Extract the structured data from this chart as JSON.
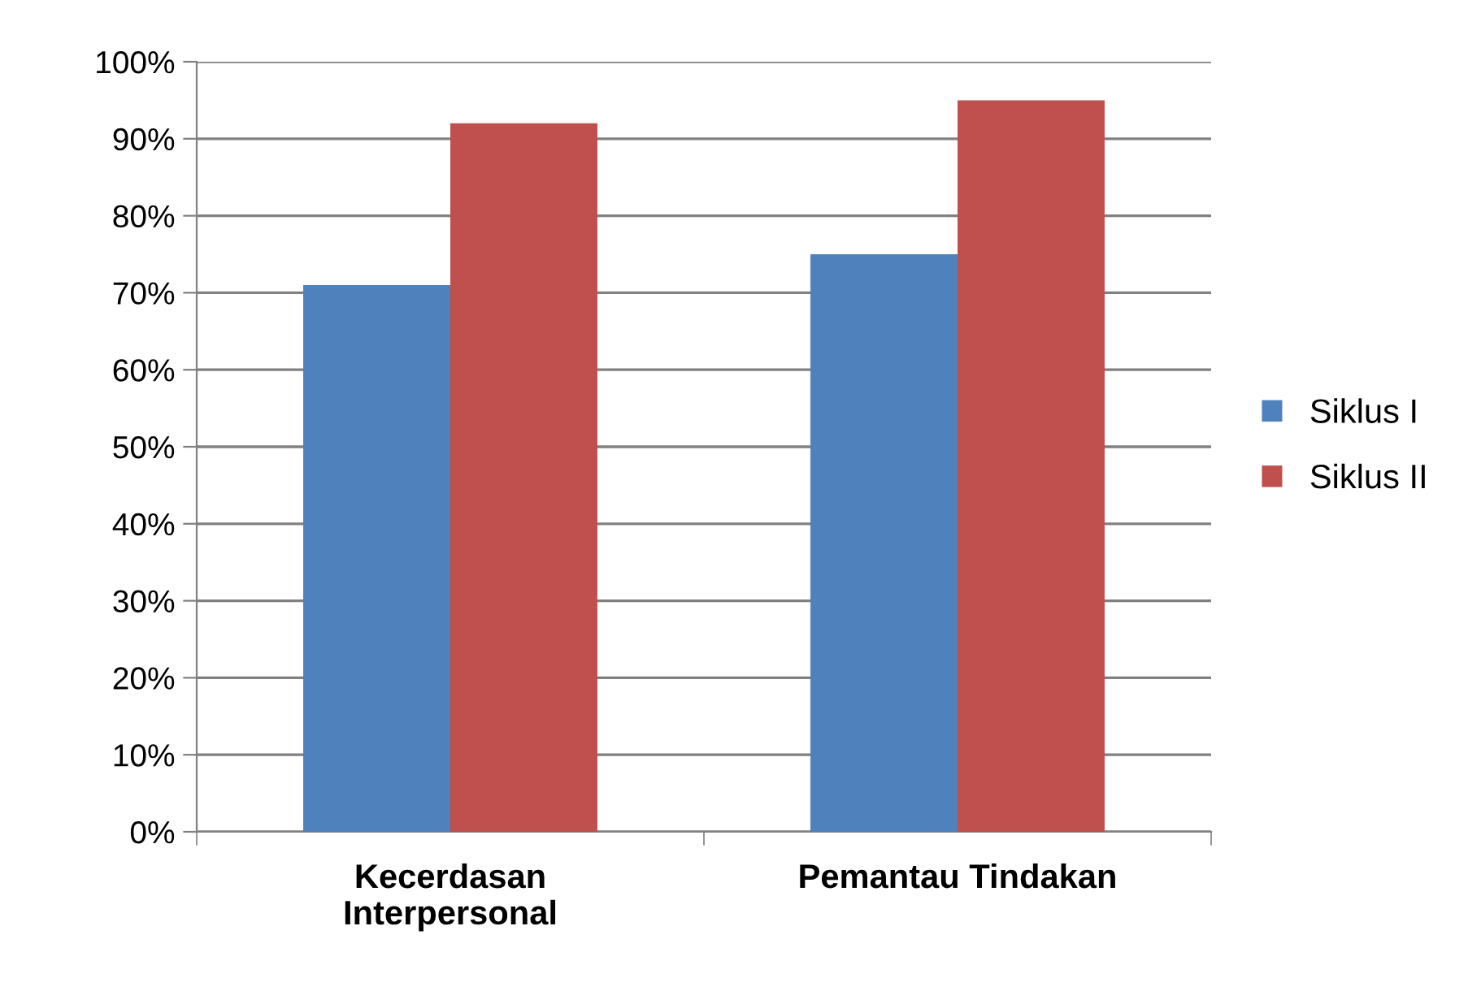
{
  "chart_data": {
    "type": "bar",
    "categories": [
      "Kecerdasan\nInterpersonal",
      "Pemantau Tindakan"
    ],
    "series": [
      {
        "name": "Siklus I",
        "color": "#4f81bd",
        "values": [
          71,
          75
        ]
      },
      {
        "name": "Siklus II",
        "color": "#c0504d",
        "values": [
          92,
          95
        ]
      }
    ],
    "ylim": [
      0,
      100
    ],
    "yticks": [
      {
        "value": 0,
        "label": "0%"
      },
      {
        "value": 10,
        "label": "10%"
      },
      {
        "value": 20,
        "label": "20%"
      },
      {
        "value": 30,
        "label": "30%"
      },
      {
        "value": 40,
        "label": "40%"
      },
      {
        "value": 50,
        "label": "50%"
      },
      {
        "value": 60,
        "label": "60%"
      },
      {
        "value": 70,
        "label": "70%"
      },
      {
        "value": 80,
        "label": "80%"
      },
      {
        "value": 90,
        "label": "90%"
      },
      {
        "value": 100,
        "label": "100%"
      }
    ],
    "grid": "y",
    "legend": "right"
  }
}
